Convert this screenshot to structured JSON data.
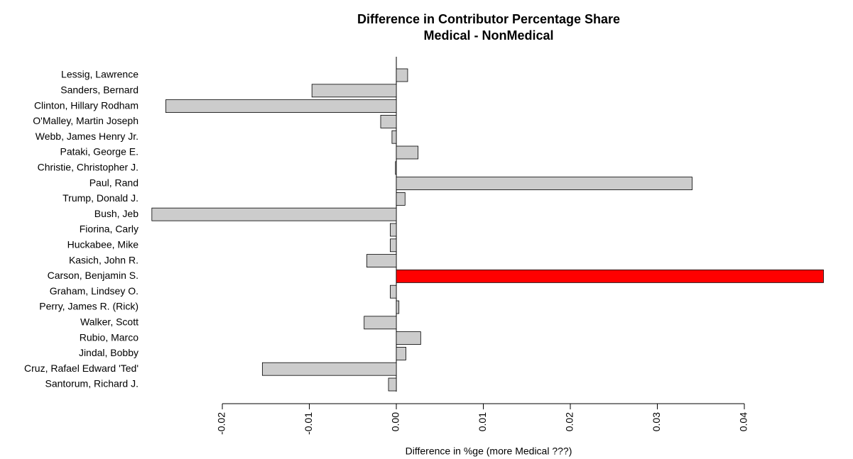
{
  "chart_data": {
    "type": "barh",
    "title": "Difference in Contributor Percentage Share",
    "subtitle": "Medical - NonMedical",
    "xlabel": "Difference in %ge (more Medical ???)",
    "categories": [
      "Lessig, Lawrence",
      "Sanders, Bernard",
      "Clinton, Hillary Rodham",
      "O'Malley, Martin Joseph",
      "Webb, James Henry Jr.",
      "Pataki, George E.",
      "Christie, Christopher J.",
      "Paul, Rand",
      "Trump, Donald J.",
      "Bush, Jeb",
      "Fiorina, Carly",
      "Huckabee, Mike",
      "Kasich, John R.",
      "Carson, Benjamin S.",
      "Graham, Lindsey O.",
      "Perry, James R. (Rick)",
      "Walker, Scott",
      "Rubio, Marco",
      "Jindal, Bobby",
      "Cruz, Rafael Edward 'Ted'",
      "Santorum, Richard J."
    ],
    "values": [
      0.0013,
      -0.0097,
      -0.0265,
      -0.0018,
      -0.0005,
      0.0025,
      -0.0001,
      0.034,
      0.001,
      -0.0281,
      -0.0007,
      -0.0007,
      -0.0034,
      0.0491,
      -0.0007,
      0.0003,
      -0.0037,
      0.0028,
      0.0011,
      -0.0154,
      -0.0009
    ],
    "colors": [
      "#cccccc",
      "#cccccc",
      "#cccccc",
      "#cccccc",
      "#cccccc",
      "#cccccc",
      "#cccccc",
      "#cccccc",
      "#cccccc",
      "#cccccc",
      "#cccccc",
      "#cccccc",
      "#cccccc",
      "#ff0000",
      "#cccccc",
      "#cccccc",
      "#cccccc",
      "#cccccc",
      "#cccccc",
      "#cccccc",
      "#cccccc"
    ],
    "xlim": [
      -0.02855,
      0.04925
    ],
    "xticks": [
      -0.02,
      -0.01,
      {
        "value": 0,
        "label": "0.00"
      },
      0.01,
      0.02,
      0.03,
      0.04
    ]
  }
}
